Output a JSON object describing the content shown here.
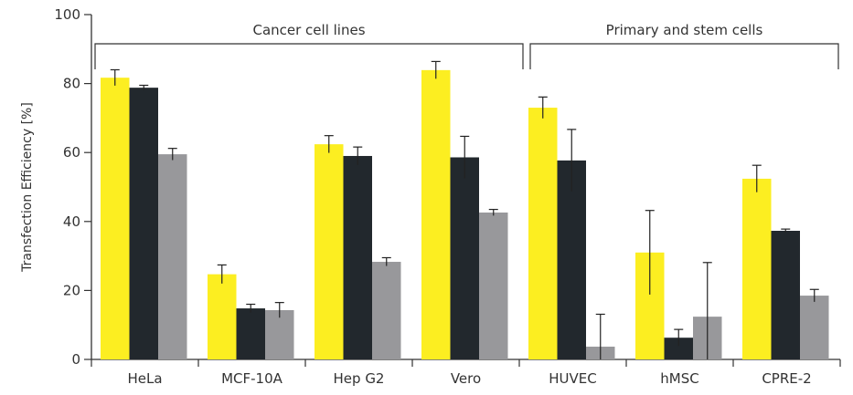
{
  "chart_data": {
    "type": "bar",
    "ylabel": "Transfection Efficiency [%]",
    "xlabel": "",
    "ylim": [
      0,
      100
    ],
    "yticks": [
      0,
      20,
      40,
      60,
      80,
      100
    ],
    "grid": false,
    "categories": [
      "HeLa",
      "MCF-10A",
      "Hep G2",
      "Vero",
      "HUVEC",
      "hMSC",
      "CPRE-2"
    ],
    "series": [
      {
        "color": "#fcee21",
        "values": [
          81.7,
          24.7,
          62.4,
          83.9,
          73.0,
          31.0,
          52.4
        ],
        "error_upper": [
          84.0,
          27.4,
          64.9,
          86.4,
          76.1,
          43.2,
          56.3
        ]
      },
      {
        "color": "#22282d",
        "values": [
          78.8,
          14.8,
          59.0,
          58.6,
          57.7,
          6.3,
          37.3
        ],
        "error_upper": [
          79.5,
          16.0,
          61.6,
          64.7,
          66.7,
          8.7,
          37.8
        ]
      },
      {
        "color": "#98989b",
        "values": [
          59.5,
          14.3,
          28.3,
          42.6,
          3.7,
          12.4,
          18.5
        ],
        "error_upper": [
          61.2,
          16.5,
          29.5,
          43.5,
          13.1,
          28.1,
          20.3
        ]
      }
    ],
    "groups": [
      {
        "label": "Cancer cell lines",
        "categories": [
          "HeLa",
          "MCF-10A",
          "Hep G2",
          "Vero"
        ]
      },
      {
        "label": "Primary and stem cells",
        "categories": [
          "HUVEC",
          "hMSC",
          "CPRE-2"
        ]
      }
    ]
  }
}
